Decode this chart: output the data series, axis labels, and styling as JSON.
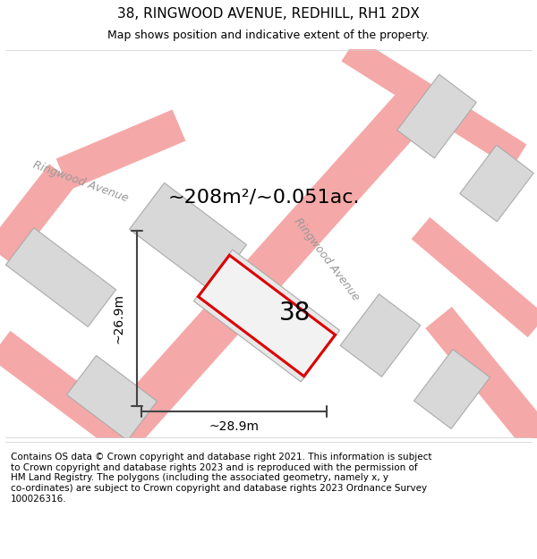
{
  "title_line1": "38, RINGWOOD AVENUE, REDHILL, RH1 2DX",
  "title_line2": "Map shows position and indicative extent of the property.",
  "footer_wrapped": "Contains OS data © Crown copyright and database right 2021. This information is subject\nto Crown copyright and database rights 2023 and is reproduced with the permission of\nHM Land Registry. The polygons (including the associated geometry, namely x, y\nco-ordinates) are subject to Crown copyright and database rights 2023 Ordnance Survey\n100026316.",
  "area_label": "~208m²/~0.051ac.",
  "number_label": "38",
  "dim_horiz": "~28.9m",
  "dim_vert": "~26.9m",
  "road_color_light": "#f5a8a8",
  "building_color": "#d8d8d8",
  "building_edge": "#aaaaaa",
  "red_outline": "#dd0000",
  "dim_color": "#444444",
  "road_label_color": "#999999",
  "title_fontsize": 11,
  "subtitle_fontsize": 9,
  "footer_fontsize": 7.5,
  "area_fontsize": 16,
  "number_fontsize": 20,
  "dim_fontsize": 10,
  "road_label_fontsize": 9
}
